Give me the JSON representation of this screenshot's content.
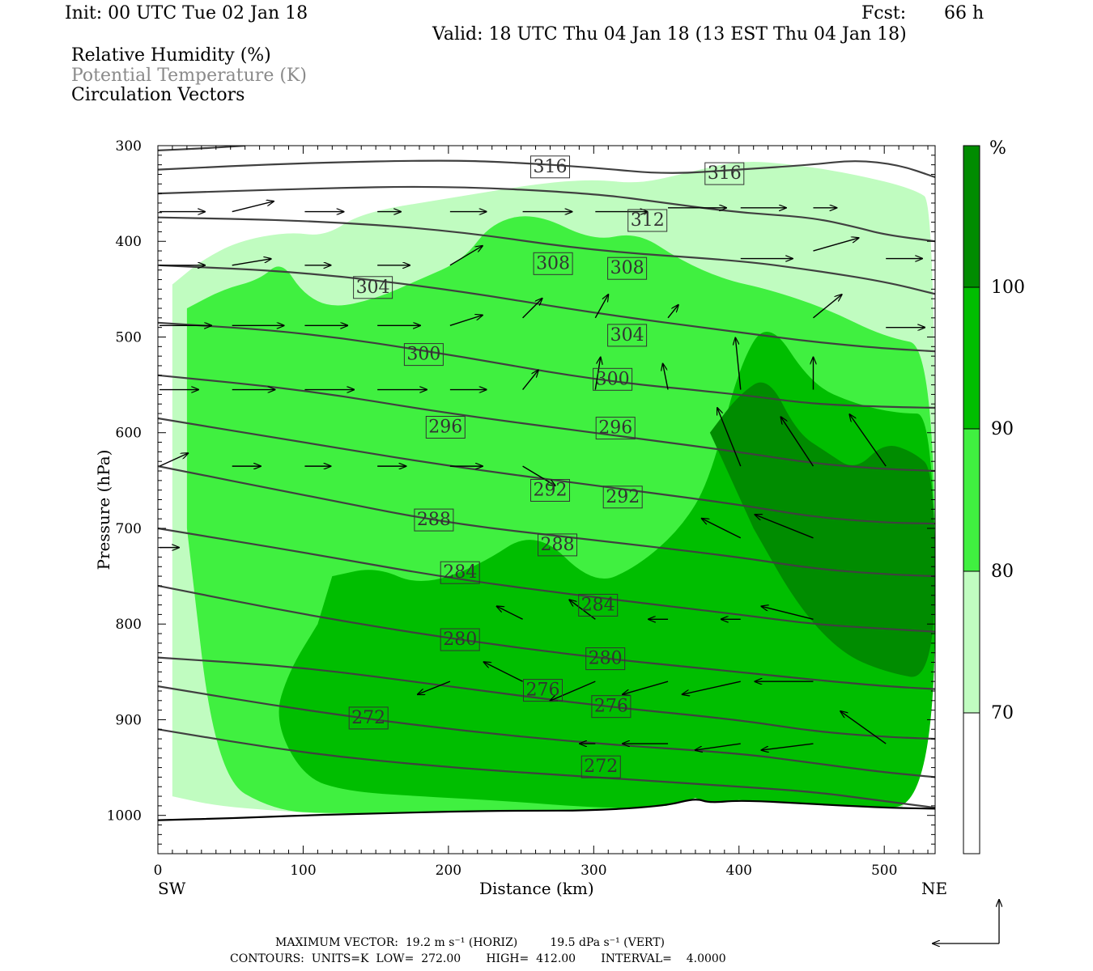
{
  "header": {
    "init": "Init: 00 UTC Tue 02 Jan 18",
    "fcst_label": "Fcst:",
    "fcst_value": "66 h",
    "valid": "Valid: 18 UTC Thu 04 Jan 18 (13 EST Thu 04 Jan 18)"
  },
  "fields": {
    "rh": "Relative Humidity (%)",
    "theta": "Potential Temperature (K)",
    "vectors": "Circulation Vectors"
  },
  "footer": {
    "line1": "MAXIMUM VECTOR:  19.2 m s⁻¹ (HORIZ)         19.5 dPa s⁻¹ (VERT)",
    "line2": "CONTOURS:  UNITS=K  LOW=  272.00       HIGH=  412.00       INTERVAL=    4.0000"
  },
  "colors": {
    "rh_70_80": "#c0fcc0",
    "rh_80_90": "#40f040",
    "rh_90_100": "#00be00",
    "rh_100": "#008c00",
    "theta_line": "#404040"
  },
  "chart_data": {
    "type": "heatmap",
    "xlabel": "Distance (km)",
    "ylabel": "Pressure (hPa)",
    "x_ticks": [
      "0",
      "100",
      "200",
      "300",
      "400",
      "500"
    ],
    "y_ticks": [
      "300",
      "400",
      "500",
      "600",
      "700",
      "800",
      "900",
      "1000"
    ],
    "x_end_labels": {
      "left": "SW",
      "right": "NE"
    },
    "xlim": [
      0,
      535
    ],
    "ylim": [
      1040,
      300
    ],
    "colorbar": {
      "unit": "%",
      "levels": [
        "70",
        "80",
        "90",
        "100"
      ],
      "colors": [
        "#ffffff",
        "#c0fcc0",
        "#40f040",
        "#00be00",
        "#008c00"
      ]
    },
    "theta_labels": [
      {
        "v": "316",
        "x": 270,
        "p": 321
      },
      {
        "v": "316",
        "x": 390,
        "p": 328
      },
      {
        "v": "312",
        "x": 337,
        "p": 377
      },
      {
        "v": "308",
        "x": 272,
        "p": 422
      },
      {
        "v": "308",
        "x": 323,
        "p": 427
      },
      {
        "v": "304",
        "x": 148,
        "p": 447
      },
      {
        "v": "304",
        "x": 323,
        "p": 497
      },
      {
        "v": "300",
        "x": 183,
        "p": 517
      },
      {
        "v": "300",
        "x": 313,
        "p": 543
      },
      {
        "v": "296",
        "x": 198,
        "p": 593
      },
      {
        "v": "296",
        "x": 315,
        "p": 594
      },
      {
        "v": "292",
        "x": 270,
        "p": 659
      },
      {
        "v": "292",
        "x": 320,
        "p": 666
      },
      {
        "v": "288",
        "x": 190,
        "p": 690
      },
      {
        "v": "288",
        "x": 275,
        "p": 716
      },
      {
        "v": "284",
        "x": 208,
        "p": 745
      },
      {
        "v": "284",
        "x": 303,
        "p": 779
      },
      {
        "v": "280",
        "x": 208,
        "p": 815
      },
      {
        "v": "280",
        "x": 308,
        "p": 835
      },
      {
        "v": "276",
        "x": 265,
        "p": 868
      },
      {
        "v": "276",
        "x": 312,
        "p": 885
      },
      {
        "v": "272",
        "x": 145,
        "p": 897
      },
      {
        "v": "272",
        "x": 305,
        "p": 948
      }
    ],
    "theta_lines": [
      {
        "x": [
          0,
          30,
          60
        ],
        "p": [
          305,
          303,
          300
        ]
      },
      {
        "x": [
          0,
          100,
          200,
          250,
          300,
          350,
          400,
          450,
          480,
          510,
          535
        ],
        "p": [
          325,
          318,
          315,
          318,
          323,
          330,
          325,
          320,
          315,
          320,
          333
        ]
      },
      {
        "x": [
          0,
          100,
          200,
          300,
          350,
          400,
          450,
          480,
          500,
          535
        ],
        "p": [
          350,
          345,
          342,
          350,
          360,
          370,
          375,
          385,
          393,
          400
        ]
      },
      {
        "x": [
          0,
          100,
          200,
          300,
          400,
          450,
          500,
          535
        ],
        "p": [
          375,
          378,
          388,
          410,
          420,
          430,
          442,
          455
        ]
      },
      {
        "x": [
          0,
          100,
          200,
          300,
          400,
          450,
          500,
          535
        ],
        "p": [
          425,
          432,
          450,
          475,
          495,
          505,
          512,
          515
        ]
      },
      {
        "x": [
          0,
          100,
          200,
          300,
          400,
          450,
          500,
          535
        ],
        "p": [
          485,
          495,
          518,
          545,
          560,
          570,
          573,
          574
        ]
      },
      {
        "x": [
          0,
          100,
          200,
          300,
          400,
          450,
          500,
          535
        ],
        "p": [
          540,
          555,
          580,
          600,
          620,
          632,
          638,
          640
        ]
      },
      {
        "x": [
          0,
          100,
          200,
          300,
          400,
          450,
          500,
          535
        ],
        "p": [
          585,
          610,
          635,
          655,
          675,
          688,
          694,
          695
        ]
      },
      {
        "x": [
          0,
          100,
          200,
          300,
          400,
          450,
          500,
          535
        ],
        "p": [
          635,
          665,
          695,
          712,
          730,
          742,
          748,
          750
        ]
      },
      {
        "x": [
          0,
          100,
          200,
          300,
          400,
          450,
          500,
          535
        ],
        "p": [
          700,
          725,
          752,
          772,
          790,
          800,
          805,
          808
        ]
      },
      {
        "x": [
          0,
          100,
          200,
          300,
          400,
          450,
          500,
          535
        ],
        "p": [
          760,
          790,
          815,
          835,
          850,
          858,
          865,
          868
        ]
      },
      {
        "x": [
          0,
          100,
          200,
          300,
          400,
          450,
          500,
          535
        ],
        "p": [
          835,
          845,
          865,
          885,
          900,
          912,
          918,
          920
        ]
      },
      {
        "x": [
          0,
          100,
          200,
          300,
          400,
          450,
          500,
          535
        ],
        "p": [
          865,
          890,
          910,
          925,
          935,
          945,
          955,
          960
        ]
      },
      {
        "x": [
          0,
          100,
          200,
          300,
          380,
          450,
          500,
          535
        ],
        "p": [
          910,
          935,
          950,
          960,
          968,
          975,
          985,
          992
        ]
      }
    ],
    "surface": {
      "x": [
        0,
        50,
        100,
        150,
        200,
        250,
        300,
        350,
        370,
        380,
        400,
        450,
        500,
        535
      ],
      "p": [
        1005,
        1003,
        1000,
        998,
        996,
        995,
        995,
        990,
        982,
        987,
        984,
        988,
        992,
        993
      ]
    },
    "rh_regions": [
      {
        "level": "70-80",
        "x": [
          10,
          30,
          55,
          90,
          115,
          140,
          200,
          260,
          300,
          330,
          360,
          400,
          440,
          480,
          520,
          535,
          535,
          470,
          430,
          380,
          330,
          290,
          230,
          180,
          130,
          80,
          40,
          10
        ],
        "p": [
          445,
          420,
          400,
          390,
          395,
          370,
          355,
          340,
          335,
          340,
          330,
          315,
          320,
          330,
          345,
          360,
          1000,
          1000,
          1000,
          1000,
          1000,
          1000,
          1000,
          1000,
          1000,
          995,
          990,
          980
        ]
      },
      {
        "level": "80-90",
        "x": [
          20,
          45,
          70,
          85,
          100,
          120,
          150,
          180,
          210,
          230,
          260,
          300,
          330,
          360,
          390,
          420,
          460,
          500,
          535,
          535,
          480,
          420,
          360,
          300,
          240,
          180,
          120,
          80,
          40,
          20
        ],
        "p": [
          470,
          450,
          440,
          420,
          455,
          470,
          460,
          440,
          420,
          380,
          370,
          400,
          390,
          420,
          440,
          450,
          470,
          500,
          510,
          990,
          990,
          990,
          995,
          995,
          995,
          998,
          998,
          995,
          960,
          700
        ]
      },
      {
        "level": "90-100",
        "x": [
          120,
          150,
          180,
          220,
          260,
          300,
          330,
          360,
          380,
          400,
          420,
          450,
          480,
          510,
          535,
          535,
          480,
          420,
          360,
          300,
          240,
          180,
          130,
          100,
          80,
          90,
          110
        ],
        "p": [
          750,
          740,
          760,
          740,
          700,
          760,
          740,
          700,
          650,
          530,
          480,
          550,
          570,
          580,
          580,
          990,
          992,
          993,
          993,
          992,
          985,
          980,
          975,
          960,
          900,
          850,
          800
        ]
      },
      {
        "level": "100",
        "x": [
          380,
          400,
          420,
          440,
          460,
          480,
          500,
          520,
          535,
          535,
          500,
          470,
          440,
          410
        ],
        "p": [
          600,
          560,
          540,
          600,
          620,
          640,
          610,
          620,
          640,
          860,
          850,
          830,
          780,
          700
        ]
      }
    ],
    "vectors": [
      {
        "x": 0,
        "p": 369,
        "u": 35,
        "w": 0
      },
      {
        "x": 50,
        "p": 369,
        "u": 32,
        "w": 8
      },
      {
        "x": 100,
        "p": 369,
        "u": 30,
        "w": 0
      },
      {
        "x": 150,
        "p": 369,
        "u": 18,
        "w": 0
      },
      {
        "x": 200,
        "p": 369,
        "u": 28,
        "w": 0
      },
      {
        "x": 250,
        "p": 369,
        "u": 38,
        "w": 0
      },
      {
        "x": 300,
        "p": 369,
        "u": 40,
        "w": 0
      },
      {
        "x": 350,
        "p": 365,
        "u": 45,
        "w": 0
      },
      {
        "x": 400,
        "p": 365,
        "u": 35,
        "w": 0
      },
      {
        "x": 450,
        "p": 365,
        "u": 18,
        "w": 0
      },
      {
        "x": 0,
        "p": 425,
        "u": 35,
        "w": 0
      },
      {
        "x": 50,
        "p": 425,
        "u": 30,
        "w": 5
      },
      {
        "x": 100,
        "p": 425,
        "u": 20,
        "w": 0
      },
      {
        "x": 150,
        "p": 425,
        "u": 25,
        "w": 0
      },
      {
        "x": 200,
        "p": 425,
        "u": 25,
        "w": 15
      },
      {
        "x": 400,
        "p": 418,
        "u": 40,
        "w": 0
      },
      {
        "x": 450,
        "p": 410,
        "u": 35,
        "w": 10
      },
      {
        "x": 500,
        "p": 418,
        "u": 28,
        "w": 0
      },
      {
        "x": 0,
        "p": 488,
        "u": 40,
        "w": 0
      },
      {
        "x": 50,
        "p": 488,
        "u": 40,
        "w": 0
      },
      {
        "x": 100,
        "p": 488,
        "u": 33,
        "w": 0
      },
      {
        "x": 150,
        "p": 488,
        "u": 33,
        "w": 0
      },
      {
        "x": 200,
        "p": 488,
        "u": 25,
        "w": 8
      },
      {
        "x": 250,
        "p": 480,
        "u": 15,
        "w": 15
      },
      {
        "x": 300,
        "p": 480,
        "u": 10,
        "w": 18
      },
      {
        "x": 350,
        "p": 480,
        "u": 8,
        "w": 10
      },
      {
        "x": 450,
        "p": 480,
        "u": 22,
        "w": 18
      },
      {
        "x": 500,
        "p": 490,
        "u": 30,
        "w": 0
      },
      {
        "x": 0,
        "p": 555,
        "u": 30,
        "w": 0
      },
      {
        "x": 50,
        "p": 555,
        "u": 33,
        "w": 0
      },
      {
        "x": 100,
        "p": 555,
        "u": 38,
        "w": 0
      },
      {
        "x": 150,
        "p": 555,
        "u": 38,
        "w": 0
      },
      {
        "x": 200,
        "p": 555,
        "u": 28,
        "w": 0
      },
      {
        "x": 250,
        "p": 555,
        "u": 12,
        "w": 15
      },
      {
        "x": 300,
        "p": 555,
        "u": 4,
        "w": 25
      },
      {
        "x": 350,
        "p": 555,
        "u": -4,
        "w": 20
      },
      {
        "x": 400,
        "p": 555,
        "u": -4,
        "w": 40
      },
      {
        "x": 450,
        "p": 555,
        "u": 0,
        "w": 25
      },
      {
        "x": 0,
        "p": 635,
        "u": 22,
        "w": 10
      },
      {
        "x": 50,
        "p": 635,
        "u": 22,
        "w": 0
      },
      {
        "x": 100,
        "p": 635,
        "u": 20,
        "w": 0
      },
      {
        "x": 150,
        "p": 635,
        "u": 22,
        "w": 0
      },
      {
        "x": 200,
        "p": 635,
        "u": 25,
        "w": 0
      },
      {
        "x": 250,
        "p": 635,
        "u": 25,
        "w": -15
      },
      {
        "x": 400,
        "p": 635,
        "u": -18,
        "w": 45
      },
      {
        "x": 450,
        "p": 635,
        "u": -25,
        "w": 38
      },
      {
        "x": 500,
        "p": 635,
        "u": -28,
        "w": 40
      },
      {
        "x": 0,
        "p": 720,
        "u": 15,
        "w": 0
      },
      {
        "x": 400,
        "p": 710,
        "u": -30,
        "w": 15
      },
      {
        "x": 450,
        "p": 710,
        "u": -45,
        "w": 18
      },
      {
        "x": 250,
        "p": 795,
        "u": -20,
        "w": 10
      },
      {
        "x": 300,
        "p": 795,
        "u": -20,
        "w": 15
      },
      {
        "x": 350,
        "p": 795,
        "u": -15,
        "w": 0
      },
      {
        "x": 400,
        "p": 795,
        "u": -15,
        "w": 0
      },
      {
        "x": 450,
        "p": 795,
        "u": -40,
        "w": 10
      },
      {
        "x": 200,
        "p": 860,
        "u": -25,
        "w": -10
      },
      {
        "x": 250,
        "p": 860,
        "u": -30,
        "w": 15
      },
      {
        "x": 300,
        "p": 860,
        "u": -35,
        "w": -15
      },
      {
        "x": 350,
        "p": 860,
        "u": -35,
        "w": -10
      },
      {
        "x": 400,
        "p": 860,
        "u": -45,
        "w": -10
      },
      {
        "x": 450,
        "p": 860,
        "u": -45,
        "w": 0
      },
      {
        "x": 300,
        "p": 925,
        "u": -12,
        "w": 0
      },
      {
        "x": 350,
        "p": 925,
        "u": -35,
        "w": 0
      },
      {
        "x": 400,
        "p": 925,
        "u": -35,
        "w": -5
      },
      {
        "x": 450,
        "p": 925,
        "u": -40,
        "w": -5
      },
      {
        "x": 500,
        "p": 925,
        "u": -35,
        "w": 25
      }
    ]
  }
}
